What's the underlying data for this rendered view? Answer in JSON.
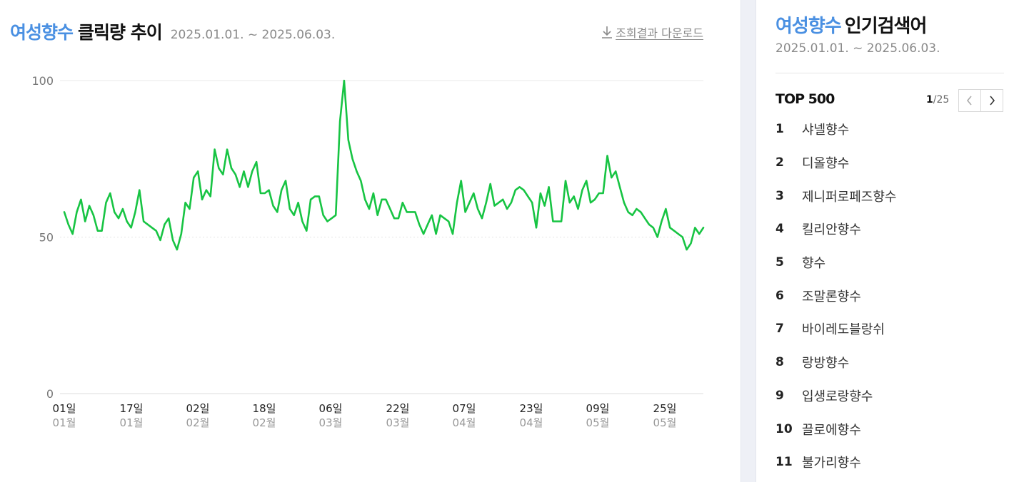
{
  "chart_panel": {
    "keyword": "여성향수",
    "title": "클릭량 추이",
    "date_range": "2025.01.01. ~ 2025.06.03.",
    "download_label": "조회결과 다운로드"
  },
  "chart_data": {
    "type": "line",
    "ylim": [
      0,
      100
    ],
    "y_ticks": [
      "0",
      "50",
      "100"
    ],
    "grid": true,
    "x_ticks": [
      {
        "day": "01일",
        "month": "01월"
      },
      {
        "day": "17일",
        "month": "01월"
      },
      {
        "day": "02일",
        "month": "02월"
      },
      {
        "day": "18일",
        "month": "02월"
      },
      {
        "day": "06일",
        "month": "03월"
      },
      {
        "day": "22일",
        "month": "03월"
      },
      {
        "day": "07일",
        "month": "04월"
      },
      {
        "day": "23일",
        "month": "04월"
      },
      {
        "day": "09일",
        "month": "05월"
      },
      {
        "day": "25일",
        "month": "05월"
      }
    ],
    "color": "#17c443",
    "series": [
      {
        "values": [
          58,
          54,
          51,
          58,
          62,
          55,
          60,
          57,
          52,
          52,
          61,
          64,
          58,
          56,
          59,
          55,
          53,
          58,
          65,
          55,
          54,
          53,
          52,
          49,
          54,
          56,
          49,
          46,
          51,
          61,
          59,
          69,
          71,
          62,
          65,
          63,
          78,
          72,
          70,
          78,
          72,
          70,
          66,
          71,
          66,
          71,
          74,
          64,
          64,
          65,
          60,
          58,
          65,
          68,
          59,
          57,
          61,
          55,
          52,
          62,
          63,
          63,
          57,
          55,
          56,
          57,
          87,
          100,
          81,
          75,
          71,
          68,
          62,
          59,
          64,
          57,
          62,
          62,
          59,
          56,
          56,
          61,
          58,
          58,
          58,
          54,
          51,
          54,
          57,
          51,
          57,
          56,
          55,
          51,
          61,
          68,
          58,
          61,
          64,
          59,
          56,
          61,
          67,
          60,
          61,
          62,
          59,
          61,
          65,
          66,
          65,
          63,
          61,
          53,
          64,
          60,
          66,
          55,
          55,
          55,
          68,
          61,
          63,
          59,
          65,
          68,
          61,
          62,
          64,
          64,
          76,
          69,
          71,
          66,
          61,
          58,
          57,
          59,
          58,
          56,
          54,
          53,
          50,
          55,
          59,
          53,
          52,
          51,
          50,
          46,
          48,
          53,
          51,
          53
        ]
      }
    ]
  },
  "rank_panel": {
    "keyword": "여성향수",
    "title": "인기검색어",
    "date_range": "2025.01.01. ~ 2025.06.03.",
    "top_label": "TOP 500",
    "page_current": "1",
    "page_total": "/25",
    "items": [
      {
        "rank": "1",
        "keyword": "샤넬향수"
      },
      {
        "rank": "2",
        "keyword": "디올향수"
      },
      {
        "rank": "3",
        "keyword": "제니퍼로페즈향수"
      },
      {
        "rank": "4",
        "keyword": "킬리안향수"
      },
      {
        "rank": "5",
        "keyword": "향수"
      },
      {
        "rank": "6",
        "keyword": "조말론향수"
      },
      {
        "rank": "7",
        "keyword": "바이레도블랑쉬"
      },
      {
        "rank": "8",
        "keyword": "랑방향수"
      },
      {
        "rank": "9",
        "keyword": "입생로랑향수"
      },
      {
        "rank": "10",
        "keyword": "끌로에향수"
      },
      {
        "rank": "11",
        "keyword": "불가리향수"
      }
    ]
  }
}
